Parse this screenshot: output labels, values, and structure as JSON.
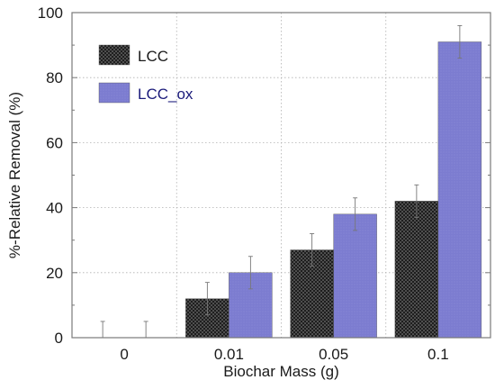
{
  "chart_data": {
    "type": "bar",
    "categories": [
      "0",
      "0.01",
      "0.05",
      "0.1"
    ],
    "series": [
      {
        "name": "LCC",
        "values": [
          0,
          12,
          27,
          42
        ],
        "errors": [
          5,
          5,
          5,
          5
        ],
        "color": "#2b2b2b",
        "pattern": "dotted-dark",
        "label_color": "#1a1a1a"
      },
      {
        "name": "LCC_ox",
        "values": [
          0,
          20,
          38,
          91
        ],
        "errors": [
          5,
          5,
          5,
          5
        ],
        "color": "#7f7fd0",
        "pattern": "solid",
        "label_color": "#1a1a7a"
      }
    ],
    "xlabel": "Biochar Mass (g)",
    "ylabel": "%-Relative Removal (%)",
    "ylim": [
      0,
      100
    ],
    "yticks": [
      0,
      20,
      40,
      60,
      80,
      100
    ],
    "grid": "dotted",
    "legend_position": "top-left"
  }
}
